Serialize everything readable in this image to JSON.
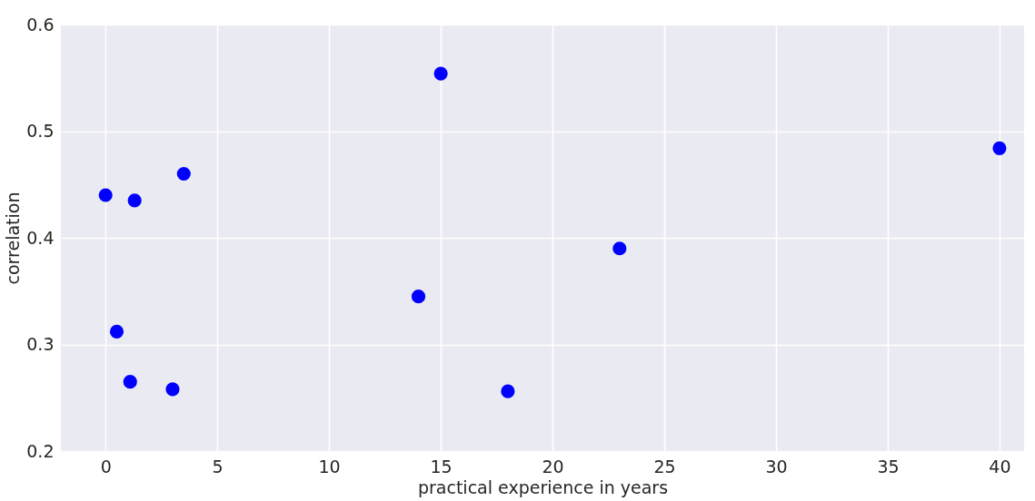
{
  "chart_data": {
    "type": "scatter",
    "xlabel": "practical experience in years",
    "ylabel": "correlation",
    "x": [
      0,
      0.5,
      1.1,
      1.3,
      3,
      3.5,
      14,
      15,
      18,
      23,
      40
    ],
    "series": [
      {
        "color": "#0000ff",
        "values": [
          0.44,
          0.312,
          0.265,
          0.435,
          0.258,
          0.46,
          0.345,
          0.554,
          0.256,
          0.39,
          0.484
        ]
      }
    ],
    "xlim": [
      -2,
      41.1
    ],
    "xticks": [
      0,
      5,
      10,
      15,
      20,
      25,
      30,
      35,
      40
    ],
    "ylim": [
      0.2,
      0.6
    ],
    "yticks": [
      0.2,
      0.3,
      0.4,
      0.5,
      0.6
    ],
    "grid": true,
    "marker": "circle"
  }
}
